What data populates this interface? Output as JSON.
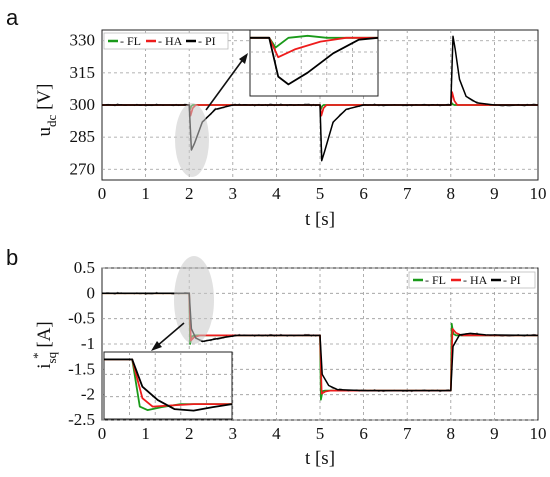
{
  "chart_data": [
    {
      "panel": "a",
      "type": "line",
      "xlabel": "t [s]",
      "ylabel_main": "u",
      "ylabel_sub": "dc",
      "ylabel_unit": " [V]",
      "xlim": [
        0,
        10
      ],
      "ylim": [
        265,
        335
      ],
      "xticks": [
        "0",
        "1",
        "2",
        "3",
        "4",
        "5",
        "6",
        "7",
        "8",
        "9",
        "10"
      ],
      "yticks": [
        "270",
        "285",
        "300",
        "315",
        "330"
      ],
      "grid": true,
      "legend": [
        "- FL",
        "- HA",
        "- PI"
      ],
      "legend_placement": "top-left",
      "colors": {
        "FL": "#1a9a1a",
        "HA": "#ee1c1c",
        "PI": "#000000"
      },
      "series": [
        {
          "name": "FL",
          "x": [
            0,
            2,
            2.02,
            2.05,
            2.08,
            5,
            5.02,
            5.05,
            5.08,
            8,
            8.02,
            8.05,
            8.08,
            10
          ],
          "y": [
            300,
            300,
            298,
            299.5,
            300,
            300,
            298,
            299.5,
            300,
            300,
            301,
            300.3,
            300,
            300
          ]
        },
        {
          "name": "HA",
          "x": [
            0,
            2,
            2.03,
            2.08,
            2.15,
            5,
            5.03,
            5.08,
            5.15,
            8,
            8.03,
            8.08,
            8.15,
            10
          ],
          "y": [
            300,
            300,
            295,
            298.5,
            300,
            300,
            295,
            298.5,
            300,
            300,
            306,
            302,
            300,
            300
          ]
        },
        {
          "name": "PI",
          "x": [
            0,
            2,
            2.05,
            2.12,
            2.3,
            2.6,
            3.0,
            5,
            5.04,
            5.1,
            5.3,
            5.6,
            6.0,
            8,
            8.05,
            8.1,
            8.2,
            8.35,
            8.6,
            9,
            10
          ],
          "y": [
            300,
            300,
            279,
            282,
            292,
            298,
            300,
            300,
            274,
            278,
            292,
            298,
            300,
            300,
            332,
            326,
            312,
            304,
            301,
            300,
            300
          ]
        }
      ],
      "inset_series": [
        {
          "name": "FL",
          "x": [
            0,
            0.15,
            0.2,
            0.3,
            0.45,
            0.6,
            1
          ],
          "y": [
            330,
            330,
            325,
            330,
            331,
            330,
            330
          ]
        },
        {
          "name": "HA",
          "x": [
            0,
            0.15,
            0.22,
            0.35,
            0.55,
            0.75,
            1
          ],
          "y": [
            330,
            330,
            320,
            324,
            328,
            330,
            330
          ]
        },
        {
          "name": "PI",
          "x": [
            0,
            0.15,
            0.22,
            0.3,
            0.45,
            0.65,
            0.85,
            1
          ],
          "y": [
            330,
            330,
            310,
            306,
            312,
            322,
            329,
            330
          ]
        }
      ]
    },
    {
      "panel": "b",
      "type": "line",
      "xlabel": "t [s]",
      "ylabel_main": "i",
      "ylabel_sub": "sq",
      "ylabel_sup": "*",
      "ylabel_unit": " [A]",
      "xlim": [
        0,
        10
      ],
      "ylim": [
        -2.5,
        0.5
      ],
      "xticks": [
        "0",
        "1",
        "2",
        "3",
        "4",
        "5",
        "6",
        "7",
        "8",
        "9",
        "10"
      ],
      "yticks": [
        "0.5",
        "0",
        "-0.5",
        "-1",
        "-1.5",
        "-2",
        "-2.5"
      ],
      "grid": true,
      "legend": [
        "- FL",
        "- HA",
        "- PI"
      ],
      "legend_placement": "top-right",
      "colors": {
        "FL": "#1a9a1a",
        "HA": "#ee1c1c",
        "PI": "#000000"
      },
      "series": [
        {
          "name": "FL",
          "x": [
            0,
            2,
            2.02,
            2.06,
            2.12,
            3,
            5,
            5.02,
            5.06,
            5.12,
            6,
            8,
            8.02,
            8.06,
            8.12,
            10
          ],
          "y": [
            0,
            0,
            -1.0,
            -0.85,
            -0.83,
            -0.83,
            -0.83,
            -2.1,
            -1.93,
            -1.92,
            -1.92,
            -1.92,
            -0.6,
            -0.8,
            -0.83,
            -0.83
          ]
        },
        {
          "name": "HA",
          "x": [
            0,
            2,
            2.04,
            2.12,
            2.25,
            3,
            5,
            5.04,
            5.12,
            5.25,
            6,
            8,
            8.04,
            8.12,
            8.25,
            10
          ],
          "y": [
            0,
            0,
            -0.93,
            -0.86,
            -0.83,
            -0.83,
            -0.83,
            -1.98,
            -1.94,
            -1.92,
            -1.92,
            -1.92,
            -0.7,
            -0.78,
            -0.83,
            -0.83
          ]
        },
        {
          "name": "PI",
          "x": [
            0,
            2,
            2.05,
            2.15,
            2.3,
            2.5,
            2.8,
            3.1,
            5,
            5.05,
            5.2,
            5.4,
            5.7,
            6,
            8,
            8.05,
            8.2,
            8.45,
            8.8,
            10
          ],
          "y": [
            0,
            0,
            -0.7,
            -0.88,
            -0.95,
            -0.92,
            -0.87,
            -0.83,
            -0.83,
            -1.6,
            -1.82,
            -1.9,
            -1.91,
            -1.92,
            -1.92,
            -1.05,
            -0.82,
            -0.79,
            -0.82,
            -0.83
          ]
        }
      ],
      "inset_series": [
        {
          "name": "FL",
          "x": [
            0,
            0.22,
            0.28,
            0.34,
            0.45,
            0.6,
            1
          ],
          "y": [
            0,
            0,
            -0.95,
            -1.02,
            -0.96,
            -0.9,
            -0.9
          ]
        },
        {
          "name": "HA",
          "x": [
            0,
            0.22,
            0.3,
            0.38,
            0.5,
            0.7,
            1
          ],
          "y": [
            0,
            0,
            -0.78,
            -0.95,
            -0.93,
            -0.9,
            -0.9
          ]
        },
        {
          "name": "PI",
          "x": [
            0,
            0.22,
            0.3,
            0.42,
            0.55,
            0.7,
            0.85,
            1
          ],
          "y": [
            0,
            0,
            -0.55,
            -0.82,
            -1.0,
            -1.03,
            -0.96,
            -0.9
          ]
        }
      ]
    }
  ]
}
